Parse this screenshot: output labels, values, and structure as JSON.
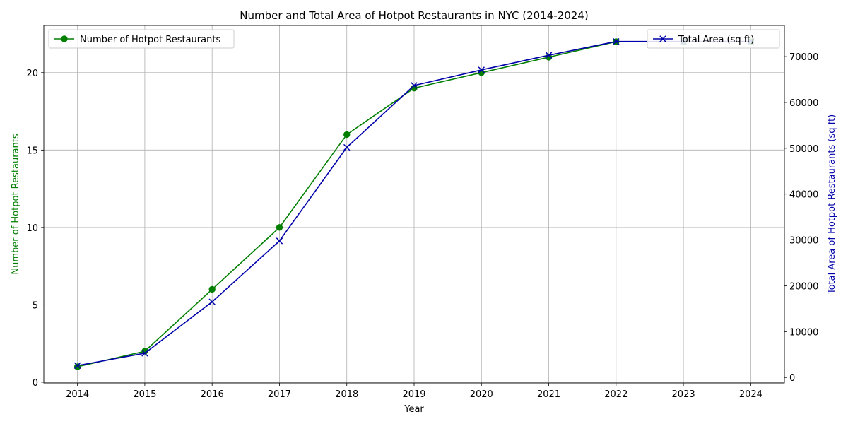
{
  "chart_data": {
    "type": "line",
    "title": "Number and Total Area of Hotpot Restaurants in NYC (2014-2024)",
    "xlabel": "Year",
    "ylabel_left": "Number of Hotpot Restaurants",
    "ylabel_right": "Total Area of Hotpot Restaurants (sq ft)",
    "categories": [
      "2014",
      "2015",
      "2016",
      "2017",
      "2018",
      "2019",
      "2020",
      "2021",
      "2022",
      "2023",
      "2024"
    ],
    "x": [
      2014,
      2015,
      2016,
      2017,
      2018,
      2019,
      2020,
      2021,
      2022,
      2023,
      2024
    ],
    "xlim": [
      2013.5,
      2024.5
    ],
    "ylim_left": [
      -0.05,
      23.05
    ],
    "ylim_right": [
      -1200,
      76800
    ],
    "yticks_left": [
      0,
      5,
      10,
      15,
      20
    ],
    "yticks_right": [
      0,
      10000,
      20000,
      30000,
      40000,
      50000,
      60000,
      70000
    ],
    "grid": true,
    "series": [
      {
        "name": "Number of Hotpot Restaurants",
        "axis": "left",
        "color": "#007f00",
        "marker": "circle",
        "values": [
          1,
          2,
          6,
          10,
          16,
          19,
          20,
          21,
          22,
          22,
          22
        ]
      },
      {
        "name": "Total Area (sq ft)",
        "axis": "right",
        "color": "#0000aa",
        "marker": "x",
        "values": [
          2600,
          5300,
          16500,
          29800,
          50200,
          63700,
          67100,
          70300,
          73300,
          73300,
          73300
        ]
      }
    ],
    "legends": [
      {
        "series": 0,
        "placement": "upper-left"
      },
      {
        "series": 1,
        "placement": "upper-right"
      }
    ]
  }
}
